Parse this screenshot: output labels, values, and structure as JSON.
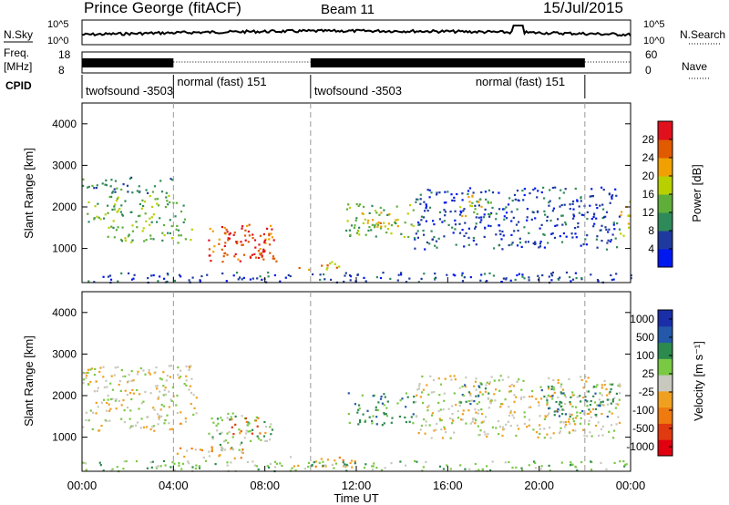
{
  "header": {
    "station": "Prince George (fitACF)",
    "beam": "Beam 11",
    "date": "15/Jul/2015"
  },
  "noise_panel": {
    "left_label": "N.Sky",
    "right_label": "N.Search",
    "left_ticks": [
      "10^5",
      "10^0"
    ],
    "right_ticks": [
      "10^5",
      "10^0"
    ]
  },
  "freq_panel": {
    "left_label_1": "Freq.",
    "left_label_2": "[MHz]",
    "right_label": "Nave",
    "left_ticks": [
      "18",
      "8"
    ],
    "right_ticks": [
      "60",
      "0"
    ]
  },
  "cpid": {
    "label": "CPID",
    "segments": [
      {
        "text": "twofsound -3503",
        "start_hour": 0,
        "end_hour": 4
      },
      {
        "text": "normal (fast) 151",
        "start_hour": 4,
        "end_hour": 10
      },
      {
        "text": "twofsound -3503",
        "start_hour": 10,
        "end_hour": 22
      },
      {
        "text": "normal (fast) 151",
        "start_hour": 22,
        "end_hour": 24
      }
    ]
  },
  "colors": {
    "power": [
      "#0018f0",
      "#1f3a9e",
      "#2f8a5a",
      "#5fae3a",
      "#b8d000",
      "#f0a000",
      "#e05a00",
      "#e0101c"
    ],
    "velocity": [
      "#1a2ea8",
      "#2458a8",
      "#2d8a4e",
      "#7ac943",
      "#c8c8be",
      "#f0a020",
      "#ee7a10",
      "#e03a10",
      "#e00010"
    ]
  },
  "chart_data": [
    {
      "type": "heatmap",
      "quantity": "power",
      "xlabel": "",
      "ylabel": "Slant Range [km]",
      "xlim": [
        0,
        24
      ],
      "ylim": [
        180,
        4500
      ],
      "yticks": [
        "1000",
        "2000",
        "3000",
        "4000"
      ],
      "colorbar_label": "Power [dB]",
      "colorbar_ticks": [
        "4",
        "8",
        "12",
        "16",
        "20",
        "24",
        "28"
      ],
      "colorbar_range": [
        0,
        32
      ],
      "regions": [
        {
          "t0": 0.0,
          "t1": 4.0,
          "r0": 2350,
          "r1": 2750,
          "level": 2
        },
        {
          "t0": 0.2,
          "t1": 4.5,
          "r0": 1650,
          "r1": 2300,
          "level": 3
        },
        {
          "t0": 1.0,
          "t1": 5.0,
          "r0": 1150,
          "r1": 1600,
          "level": 3
        },
        {
          "t0": 5.5,
          "t1": 8.5,
          "r0": 700,
          "r1": 1600,
          "level": 6
        },
        {
          "t0": 6.0,
          "t1": 8.0,
          "r0": 800,
          "r1": 1400,
          "level": 7
        },
        {
          "t0": 9.2,
          "t1": 11.5,
          "r0": 500,
          "r1": 700,
          "level": 5
        },
        {
          "t0": 11.5,
          "t1": 14.5,
          "r0": 1300,
          "r1": 2100,
          "level": 3
        },
        {
          "t0": 12.0,
          "t1": 13.8,
          "r0": 1500,
          "r1": 1900,
          "level": 5
        },
        {
          "t0": 14.5,
          "t1": 23.5,
          "r0": 1000,
          "r1": 2500,
          "level": 1
        },
        {
          "t0": 16.5,
          "t1": 18.0,
          "r0": 1800,
          "r1": 2300,
          "level": 4
        },
        {
          "t0": 23.5,
          "t1": 24.0,
          "r0": 1300,
          "r1": 2200,
          "level": 5
        },
        {
          "t0": 0.0,
          "t1": 24.0,
          "r0": 200,
          "r1": 450,
          "level": 1
        }
      ]
    },
    {
      "type": "heatmap",
      "quantity": "velocity",
      "xlabel": "Time UT",
      "ylabel": "Slant Range [km]",
      "xlim": [
        0,
        24
      ],
      "xticks": [
        "00:00",
        "04:00",
        "08:00",
        "12:00",
        "16:00",
        "20:00",
        "00:00"
      ],
      "ylim": [
        180,
        4500
      ],
      "yticks": [
        "1000",
        "2000",
        "3000",
        "4000"
      ],
      "colorbar_label": "Velocity [m s⁻¹]",
      "colorbar_ticks": [
        "1000",
        "500",
        "100",
        "25",
        "-25",
        "-100",
        "-500",
        "-1000"
      ],
      "regions": [
        {
          "t0": 0.0,
          "t1": 5.0,
          "r0": 1150,
          "r1": 2750,
          "level": 4
        },
        {
          "t0": 5.5,
          "t1": 8.3,
          "r0": 700,
          "r1": 1600,
          "level": 5
        },
        {
          "t0": 6.5,
          "t1": 8.0,
          "r0": 1100,
          "r1": 1500,
          "level": 2
        },
        {
          "t0": 4.0,
          "t1": 7.5,
          "r0": 500,
          "r1": 800,
          "level": 3
        },
        {
          "t0": 9.0,
          "t1": 12.0,
          "r0": 300,
          "r1": 550,
          "level": 3
        },
        {
          "t0": 11.5,
          "t1": 14.5,
          "r0": 1300,
          "r1": 2100,
          "level": 6
        },
        {
          "t0": 14.5,
          "t1": 23.5,
          "r0": 1000,
          "r1": 2500,
          "level": 4
        },
        {
          "t0": 16.5,
          "t1": 18.0,
          "r0": 1800,
          "r1": 2300,
          "level": 6
        },
        {
          "t0": 20.0,
          "t1": 23.5,
          "r0": 1500,
          "r1": 2300,
          "level": 6
        },
        {
          "t0": 0.0,
          "t1": 24.0,
          "r0": 200,
          "r1": 450,
          "level": 5
        }
      ]
    }
  ]
}
